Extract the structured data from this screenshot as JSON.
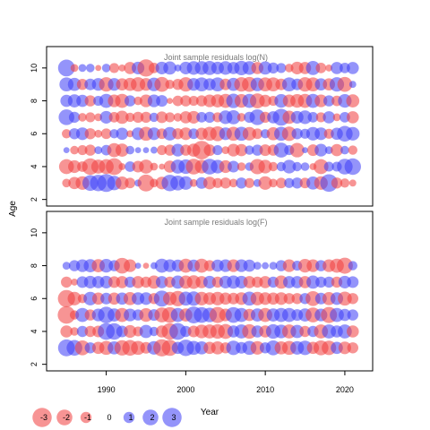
{
  "chart_data": {
    "type": "scatter",
    "description_kind": "bubble residual plot",
    "ylabel": "Age",
    "xlabel": "Year",
    "xlim": [
      1982.5,
      2023.5
    ],
    "x_ticks": [
      1990,
      2000,
      2010,
      2020
    ],
    "colors": {
      "positive": "#3d3df5",
      "negative": "#f03c3c"
    },
    "legend": {
      "title": "Year",
      "placement": "bottom-left",
      "values": [
        -3,
        -2,
        -1,
        0,
        1,
        2,
        3
      ],
      "labels": [
        "-3",
        "-2",
        "-1",
        "0",
        "1",
        "2",
        "3"
      ]
    },
    "panels": [
      {
        "title": "Joint sample residuals log(N)",
        "ylim": [
          1.6,
          11.3
        ],
        "y_ticks": [
          2,
          4,
          6,
          8,
          10
        ],
        "ages": [
          3,
          4,
          5,
          6,
          7,
          8,
          9,
          10
        ],
        "years": [
          1985,
          1986,
          1987,
          1988,
          1989,
          1990,
          1991,
          1992,
          1993,
          1994,
          1995,
          1996,
          1997,
          1998,
          1999,
          2000,
          2001,
          2002,
          2003,
          2004,
          2005,
          2006,
          2007,
          2008,
          2009,
          2010,
          2011,
          2012,
          2013,
          2014,
          2015,
          2016,
          2017,
          2018,
          2019,
          2020,
          2021
        ],
        "residuals": {
          "3": [
            -0.6,
            -1.2,
            -1.5,
            2.0,
            2.2,
            2.6,
            1.7,
            -1.4,
            -0.9,
            0.4,
            -2.3,
            -0.6,
            -1.3,
            2.2,
            1.8,
            1.5,
            -0.5,
            1.1,
            -1.3,
            -0.8,
            -1.0,
            -0.6,
            1.0,
            -0.8,
            0.5,
            -1.5,
            -0.6,
            -0.9,
            0.8,
            1.0,
            -0.9,
            1.4,
            -1.5,
            2.5,
            -1.0,
            -0.7,
            -0.4
          ],
          "4": [
            -1.8,
            -1.3,
            -0.9,
            -2.2,
            -1.6,
            -1.8,
            -2.3,
            -0.4,
            0.9,
            -1.1,
            -1.6,
            -0.5,
            -0.3,
            -1.2,
            1.6,
            1.7,
            -2.0,
            -1.5,
            2.0,
            1.5,
            -1.3,
            1.1,
            -0.6,
            0.6,
            -1.9,
            -1.5,
            -0.7,
            0.7,
            1.5,
            0.7,
            0.6,
            -0.4,
            -1.8,
            0.8,
            0.8,
            2.0,
            2.2
          ],
          "5": [
            0.3,
            -0.6,
            -0.8,
            -1.0,
            0.5,
            0.9,
            -1.6,
            -1.4,
            0.6,
            0.3,
            0.3,
            0.4,
            -0.8,
            -1.0,
            1.3,
            -1.0,
            -1.4,
            -2.8,
            -1.1,
            0.8,
            -0.5,
            -1.3,
            -1.2,
            0.7,
            1.0,
            -1.1,
            -1.0,
            1.8,
            0.8,
            -1.7,
            0.3,
            -1.1,
            1.3,
            0.5,
            -1.2,
            0.6,
            -0.7
          ],
          "6": [
            -0.7,
            1.0,
            1.3,
            -1.0,
            -0.5,
            -0.9,
            0.7,
            1.2,
            -0.4,
            1.3,
            -1.6,
            1.3,
            -0.9,
            1.5,
            -1.0,
            -1.3,
            0.9,
            -1.2,
            -1.6,
            -1.8,
            1.3,
            -1.6,
            1.6,
            -1.5,
            -0.9,
            0.7,
            -1.4,
            1.6,
            -1.7,
            1.0,
            0.8,
            1.5,
            1.3,
            -0.8,
            1.2,
            2.0,
            1.5
          ],
          "7": [
            2.0,
            1.0,
            -0.6,
            -0.8,
            -0.5,
            1.3,
            -0.9,
            -1.4,
            -0.7,
            -1.0,
            -1.0,
            0.7,
            -1.1,
            -0.8,
            -0.6,
            -1.2,
            -1.3,
            0.9,
            1.0,
            -0.8,
            1.5,
            1.6,
            -0.6,
            1.0,
            2.0,
            -1.0,
            1.2,
            2.3,
            -1.4,
            1.3,
            1.5,
            0.9,
            -0.8,
            1.2,
            -0.5,
            0.9,
            -1.2
          ],
          "8": [
            1.2,
            1.4,
            1.2,
            -1.0,
            0.8,
            1.6,
            -1.3,
            -1.6,
            1.0,
            -0.6,
            -1.3,
            1.3,
            1.1,
            -0.3,
            -0.9,
            -1.0,
            -0.8,
            -1.0,
            -1.3,
            -1.4,
            -1.6,
            1.7,
            -1.5,
            1.6,
            -1.8,
            -1.2,
            -0.8,
            1.5,
            -1.3,
            -1.5,
            -1.6,
            1.6,
            -1.3,
            1.0,
            -0.9,
            1.5,
            -1.4
          ],
          "9": [
            1.6,
            1.4,
            -1.0,
            1.1,
            1.3,
            -1.7,
            1.3,
            -1.2,
            -1.4,
            -1.7,
            -1.3,
            1.5,
            -1.8,
            -0.7,
            -1.0,
            -1.7,
            1.3,
            1.6,
            1.2,
            1.6,
            -1.1,
            1.4,
            -1.7,
            -1.8,
            1.5,
            -1.6,
            -1.6,
            -1.1,
            1.6,
            1.1,
            -1.7,
            -1.6,
            1.2,
            -1.2,
            1.7,
            -1.8,
            0.4
          ],
          "10": [
            2.3,
            -0.5,
            0.5,
            0.6,
            -0.3,
            0.6,
            -0.8,
            -0.4,
            -1.2,
            1.3,
            -2.4,
            -0.9,
            1.3,
            1.4,
            0.4,
            1.3,
            1.5,
            1.5,
            1.6,
            1.3,
            1.5,
            1.2,
            1.7,
            1.5,
            -1.2,
            1.4,
            1.0,
            0.8,
            -0.6,
            -1.3,
            -1.2,
            1.6,
            -0.9,
            -0.4,
            1.2,
            0.9,
            1.2
          ]
        }
      },
      {
        "title": "Joint sample residuals log(F)",
        "ylim": [
          1.6,
          11.3
        ],
        "y_ticks": [
          2,
          4,
          6,
          8,
          10
        ],
        "ages": [
          3,
          4,
          5,
          6,
          7,
          8
        ],
        "years": [
          1985,
          1986,
          1987,
          1988,
          1989,
          1990,
          1991,
          1992,
          1993,
          1994,
          1995,
          1996,
          1997,
          1998,
          1999,
          2000,
          2001,
          2002,
          2003,
          2004,
          2005,
          2006,
          2007,
          2008,
          2009,
          2010,
          2011,
          2012,
          2013,
          2014,
          2015,
          2016,
          2017,
          2018,
          2019,
          2020,
          2021
        ],
        "residuals": {
          "3": [
            2.3,
            2.0,
            -1.8,
            1.0,
            -1.2,
            -1.6,
            1.4,
            -1.9,
            -2.0,
            -1.6,
            -1.1,
            1.5,
            -2.4,
            -2.1,
            1.2,
            2.2,
            1.6,
            1.4,
            -1.2,
            -1.4,
            -1.0,
            1.7,
            1.1,
            1.6,
            -1.5,
            1.0,
            1.8,
            -1.4,
            -1.6,
            1.5,
            1.7,
            -1.2,
            -1.8,
            -1.7,
            1.2,
            -1.3,
            -1.0
          ],
          "4": [
            -1.2,
            -0.6,
            1.0,
            -1.0,
            -1.1,
            2.3,
            2.2,
            1.1,
            -1.3,
            -0.8,
            1.4,
            0.7,
            -1.2,
            -2.2,
            2.3,
            1.0,
            -1.1,
            -1.5,
            -1.6,
            -1.7,
            -1.8,
            1.2,
            1.6,
            -1.7,
            1.2,
            -1.2,
            1.7,
            1.5,
            -1.6,
            1.4,
            -1.0,
            1.0,
            -1.6,
            1.6,
            1.2,
            1.6,
            -1.2
          ],
          "5": [
            -2.5,
            -0.7,
            1.6,
            -1.0,
            1.3,
            2.2,
            1.4,
            -1.6,
            1.3,
            1.0,
            -1.5,
            1.1,
            -1.8,
            -2.0,
            1.6,
            -1.4,
            2.3,
            2.0,
            1.7,
            -2.1,
            -1.3,
            2.0,
            1.6,
            -1.2,
            1.4,
            -1.6,
            1.4,
            1.6,
            1.6,
            1.1,
            1.4,
            -1.8,
            1.3,
            -2.1,
            1.6,
            1.2,
            1.0
          ],
          "6": [
            -2.4,
            -1.5,
            -0.7,
            1.5,
            -1.2,
            1.1,
            -1.2,
            1.2,
            -1.4,
            1.3,
            1.3,
            -1.0,
            2.1,
            -1.5,
            -1.9,
            1.6,
            1.7,
            -1.5,
            -1.3,
            -1.5,
            -1.2,
            -1.1,
            -1.3,
            1.6,
            -1.5,
            -1.3,
            -1.2,
            -1.3,
            -1.0,
            -1.0,
            1.0,
            -1.8,
            1.1,
            -1.4,
            1.3,
            -1.6,
            -1.0
          ],
          "7": [
            -1.0,
            -0.4,
            1.1,
            1.3,
            1.2,
            1.3,
            -1.1,
            -1.2,
            1.0,
            -1.2,
            -1.0,
            -1.4,
            1.2,
            -1.0,
            1.4,
            -1.4,
            -1.5,
            -1.2,
            1.3,
            -1.0,
            1.3,
            1.4,
            1.3,
            -1.2,
            -1.0,
            -1.2,
            1.0,
            -1.4,
            1.2,
            1.2,
            -1.2,
            1.4,
            1.0,
            1.0,
            -1.0,
            1.3,
            1.1
          ],
          "8": [
            0.5,
            1.0,
            1.3,
            1.4,
            -1.4,
            1.5,
            1.0,
            -2.0,
            -1.3,
            0.3,
            -0.3,
            0.4,
            1.6,
            1.3,
            1.2,
            -1.6,
            1.2,
            -1.6,
            -1.0,
            1.2,
            1.3,
            -1.3,
            1.3,
            1.2,
            0.5,
            0.4,
            0.5,
            1.0,
            -1.3,
            0.8,
            -1.5,
            -1.3,
            1.0,
            -1.3,
            -1.6,
            -2.1,
            0.7
          ]
        }
      }
    ]
  }
}
